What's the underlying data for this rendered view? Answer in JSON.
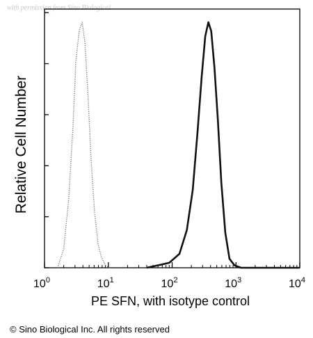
{
  "watermark": "with permission from Sino Biological",
  "copyright": "© Sino Biological Inc. All rights reserved",
  "chart_data": {
    "type": "area",
    "title": "",
    "xlabel": "PE SFN, with isotype control",
    "ylabel": "Relative Cell Number",
    "x_scale": "log",
    "xlim": [
      1,
      10000
    ],
    "x_ticks": [
      {
        "base": "10",
        "exp": "0"
      },
      {
        "base": "10",
        "exp": "1"
      },
      {
        "base": "10",
        "exp": "2"
      },
      {
        "base": "10",
        "exp": "3"
      },
      {
        "base": "10",
        "exp": "4"
      }
    ],
    "ylim": [
      0,
      1
    ],
    "grid": false,
    "series": [
      {
        "style": "dotted",
        "color": "#7a7a7a",
        "x": [
          1.6,
          2.0,
          2.4,
          2.8,
          3.1,
          3.5,
          3.9,
          4.3,
          4.8,
          5.4,
          6.1,
          6.9,
          7.8,
          9.0,
          10.5
        ],
        "y": [
          0.0,
          0.08,
          0.28,
          0.58,
          0.84,
          0.97,
          1.0,
          0.92,
          0.7,
          0.43,
          0.22,
          0.1,
          0.04,
          0.01,
          0.0
        ]
      },
      {
        "style": "solid",
        "color": "#111111",
        "x": [
          40,
          60,
          90,
          130,
          170,
          210,
          250,
          290,
          330,
          370,
          410,
          460,
          520,
          590,
          680,
          790,
          950,
          1200,
          10000
        ],
        "y": [
          0.0,
          0.01,
          0.02,
          0.06,
          0.15,
          0.32,
          0.55,
          0.78,
          0.94,
          1.0,
          0.96,
          0.82,
          0.6,
          0.35,
          0.14,
          0.04,
          0.01,
          0.0,
          0.0
        ]
      }
    ]
  }
}
